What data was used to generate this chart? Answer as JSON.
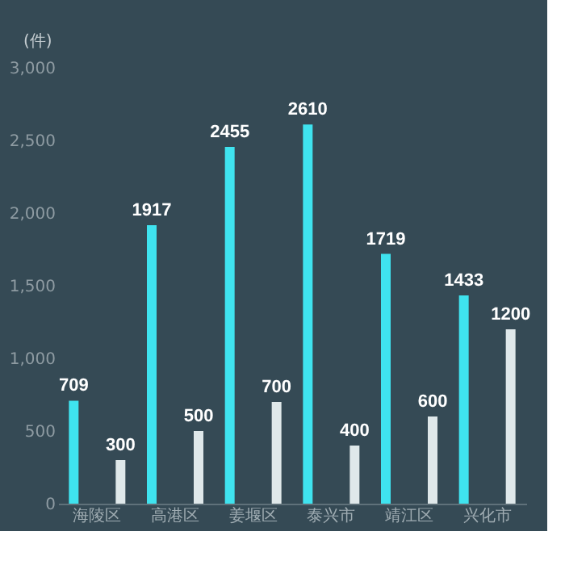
{
  "chart_data": {
    "type": "bar",
    "ylabel": "(件)",
    "categories": [
      "海陵区",
      "高港区",
      "姜堰区",
      "泰兴市",
      "靖江区",
      "兴化市"
    ],
    "series": [
      {
        "color": "#3fe3ef",
        "values": [
          709,
          1917,
          2455,
          2610,
          1719,
          1433
        ]
      },
      {
        "color": "#dfe8ea",
        "values": [
          300,
          500,
          700,
          400,
          600,
          1200
        ]
      }
    ],
    "ylim": [
      0,
      3000
    ],
    "yticks": [
      0,
      {
        "value": 500,
        "label": "500"
      },
      {
        "value": 1000,
        "label": "1,000"
      },
      {
        "value": 1500,
        "label": "1,500"
      },
      {
        "value": 2000,
        "label": "2,000"
      },
      {
        "value": 2500,
        "label": "2,500"
      },
      {
        "value": 3000,
        "label": "3,000"
      }
    ],
    "data_labels": true,
    "grid": false
  }
}
